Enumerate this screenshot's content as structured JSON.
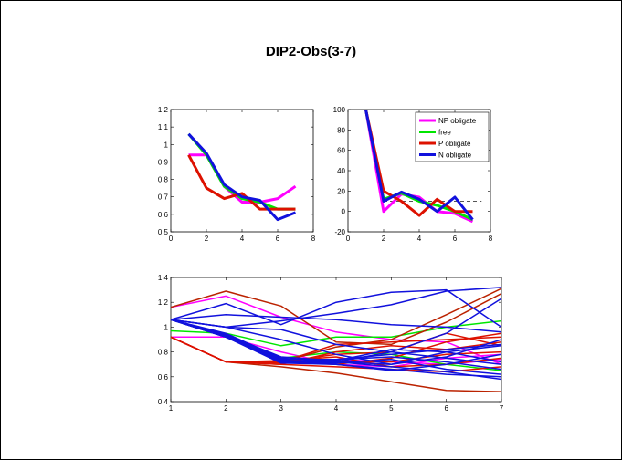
{
  "figure_title": "DIP2-Obs(3-7)",
  "colors": {
    "np_obligate": "#ff00ff",
    "free": "#00e600",
    "p_obligate": "#dd1100",
    "n_obligate": "#1111dd",
    "dark_red": "#bb2200",
    "dashed": "#555555"
  },
  "chart_data": [
    {
      "type": "line",
      "title": "",
      "xlabel": "",
      "ylabel": "",
      "xlim": [
        0,
        8
      ],
      "ylim": [
        0.5,
        1.2
      ],
      "xticks": [
        "0",
        "2",
        "4",
        "6",
        "8"
      ],
      "yticks": [
        "0.5",
        "0.6",
        "0.7",
        "0.8",
        "0.9",
        "1",
        "1.1",
        "1.2"
      ],
      "grid": false,
      "series": [
        {
          "color_key": "np_obligate",
          "x": [
            1,
            2,
            3,
            4,
            5,
            6,
            7
          ],
          "y": [
            0.94,
            0.94,
            0.76,
            0.67,
            0.67,
            0.69,
            0.76
          ]
        },
        {
          "color_key": "free",
          "x": [
            1,
            2,
            3,
            4,
            5,
            6,
            7
          ],
          "y": [
            1.06,
            0.94,
            0.76,
            0.69,
            0.67,
            0.63,
            0.63
          ]
        },
        {
          "color_key": "p_obligate",
          "x": [
            1,
            2,
            3,
            4,
            5,
            6,
            7
          ],
          "y": [
            0.94,
            0.75,
            0.69,
            0.72,
            0.63,
            0.63,
            0.63
          ]
        },
        {
          "color_key": "n_obligate",
          "x": [
            1,
            2,
            3,
            4,
            5,
            6,
            7
          ],
          "y": [
            1.06,
            0.95,
            0.77,
            0.7,
            0.68,
            0.57,
            0.61
          ]
        }
      ]
    },
    {
      "type": "line",
      "title": "",
      "xlabel": "",
      "ylabel": "",
      "xlim": [
        0,
        8
      ],
      "ylim": [
        -20,
        100
      ],
      "xticks": [
        "0",
        "2",
        "4",
        "6",
        "8"
      ],
      "yticks": [
        "-20",
        "0",
        "20",
        "40",
        "60",
        "80",
        "100"
      ],
      "grid": false,
      "reference_line": {
        "y": 10,
        "x": [
          2,
          7.5
        ],
        "style": "dashed"
      },
      "legend": {
        "position": "top-right",
        "entries": [
          {
            "label": "NP obligate",
            "color_key": "np_obligate"
          },
          {
            "label": "free",
            "color_key": "free"
          },
          {
            "label": "P obligate",
            "color_key": "p_obligate"
          },
          {
            "label": "N obligate",
            "color_key": "n_obligate"
          }
        ]
      },
      "series": [
        {
          "color_key": "np_obligate",
          "x": [
            1,
            2,
            3,
            4,
            5,
            6,
            7
          ],
          "y": [
            100,
            0,
            17,
            14,
            0,
            -2,
            -10
          ]
        },
        {
          "color_key": "free",
          "x": [
            1,
            2,
            3,
            4,
            5,
            6,
            7
          ],
          "y": [
            100,
            12,
            18,
            10,
            6,
            0,
            -8
          ]
        },
        {
          "color_key": "p_obligate",
          "x": [
            1,
            2,
            3,
            4,
            5,
            6,
            7
          ],
          "y": [
            100,
            20,
            10,
            -4,
            12,
            0,
            0
          ]
        },
        {
          "color_key": "n_obligate",
          "x": [
            1,
            2,
            3,
            4,
            5,
            6,
            7
          ],
          "y": [
            100,
            10,
            19,
            12,
            0,
            14,
            -8
          ]
        }
      ]
    },
    {
      "type": "line",
      "title": "",
      "xlabel": "",
      "ylabel": "",
      "xlim": [
        1,
        7
      ],
      "ylim": [
        0.4,
        1.4
      ],
      "xticks": [
        "1",
        "2",
        "3",
        "4",
        "5",
        "6",
        "7"
      ],
      "yticks": [
        "0.4",
        "0.6",
        "0.8",
        "1",
        "1.2",
        "1.4"
      ],
      "grid": false,
      "series": [
        {
          "color_key": "np_obligate",
          "x": [
            1,
            2,
            3,
            4,
            5,
            6,
            7
          ],
          "y": [
            1.16,
            1.25,
            1.08,
            0.96,
            0.9,
            0.88,
            0.7
          ]
        },
        {
          "color_key": "np_obligate",
          "x": [
            1,
            2,
            3,
            4,
            5,
            6,
            7
          ],
          "y": [
            0.92,
            0.92,
            0.8,
            0.7,
            0.68,
            0.75,
            0.78
          ]
        },
        {
          "color_key": "np_obligate",
          "x": [
            1,
            2,
            3,
            4,
            5,
            6,
            7
          ],
          "y": [
            0.92,
            0.72,
            0.72,
            0.74,
            0.72,
            0.7,
            0.74
          ]
        },
        {
          "color_key": "free",
          "x": [
            1,
            2,
            3,
            4,
            5,
            6,
            7
          ],
          "y": [
            0.97,
            0.95,
            0.85,
            0.92,
            0.92,
            1.0,
            1.05
          ]
        },
        {
          "color_key": "free",
          "x": [
            1,
            2,
            3,
            4,
            5,
            6,
            7
          ],
          "y": [
            1.06,
            0.92,
            0.75,
            0.8,
            0.78,
            0.7,
            0.65
          ]
        },
        {
          "color_key": "dark_red",
          "x": [
            1,
            2,
            3,
            4,
            5,
            6,
            7
          ],
          "y": [
            1.16,
            1.29,
            1.17,
            0.88,
            0.86,
            1.04,
            1.27
          ]
        },
        {
          "color_key": "dark_red",
          "x": [
            1,
            2,
            3,
            4,
            5,
            6,
            7
          ],
          "y": [
            0.92,
            0.72,
            0.68,
            0.63,
            0.56,
            0.49,
            0.48
          ]
        },
        {
          "color_key": "dark_red",
          "x": [
            1,
            2,
            3,
            4,
            5,
            6,
            7
          ],
          "y": [
            0.92,
            0.72,
            0.72,
            0.84,
            0.9,
            1.1,
            1.31
          ]
        },
        {
          "color_key": "p_obligate",
          "x": [
            1,
            2,
            3,
            4,
            5,
            6,
            7
          ],
          "y": [
            0.92,
            0.72,
            0.72,
            0.86,
            0.88,
            0.9,
            0.92
          ]
        },
        {
          "color_key": "p_obligate",
          "x": [
            1,
            2,
            3,
            4,
            5,
            6,
            7
          ],
          "y": [
            0.92,
            0.72,
            0.7,
            0.8,
            0.85,
            0.82,
            0.88
          ]
        },
        {
          "color_key": "p_obligate",
          "x": [
            1,
            2,
            3,
            4,
            5,
            6,
            7
          ],
          "y": [
            0.92,
            0.72,
            0.72,
            0.78,
            0.8,
            0.95,
            0.85
          ]
        },
        {
          "color_key": "p_obligate",
          "x": [
            1,
            2,
            3,
            4,
            5,
            6,
            7
          ],
          "y": [
            0.92,
            0.72,
            0.7,
            0.68,
            0.66,
            0.64,
            0.68
          ]
        },
        {
          "color_key": "p_obligate",
          "x": [
            1,
            2,
            3,
            4,
            5,
            6,
            7
          ],
          "y": [
            0.92,
            0.72,
            0.71,
            0.72,
            0.72,
            0.78,
            0.8
          ]
        },
        {
          "color_key": "p_obligate",
          "x": [
            1,
            2,
            3,
            4,
            5,
            6,
            7
          ],
          "y": [
            0.92,
            0.72,
            0.73,
            0.76,
            0.68,
            0.7,
            0.75
          ]
        },
        {
          "color_key": "p_obligate",
          "x": [
            1,
            2,
            3,
            4,
            5,
            6,
            7
          ],
          "y": [
            0.92,
            0.72,
            0.72,
            0.7,
            0.75,
            0.88,
            0.95
          ]
        },
        {
          "color_key": "n_obligate",
          "x": [
            1,
            2,
            3,
            4,
            5,
            6,
            7
          ],
          "y": [
            1.06,
            1.19,
            1.02,
            1.2,
            1.28,
            1.3,
            1.0
          ]
        },
        {
          "color_key": "n_obligate",
          "x": [
            1,
            2,
            3,
            4,
            5,
            6,
            7
          ],
          "y": [
            1.06,
            1.0,
            1.05,
            1.11,
            1.18,
            1.29,
            1.32
          ]
        },
        {
          "color_key": "n_obligate",
          "x": [
            1,
            2,
            3,
            4,
            5,
            6,
            7
          ],
          "y": [
            1.06,
            1.1,
            1.08,
            1.06,
            1.02,
            1.0,
            0.96
          ]
        },
        {
          "color_key": "n_obligate",
          "x": [
            1,
            2,
            3,
            4,
            5,
            6,
            7
          ],
          "y": [
            1.06,
            0.95,
            0.75,
            0.72,
            0.8,
            0.95,
            1.23
          ]
        },
        {
          "color_key": "n_obligate",
          "x": [
            1,
            2,
            3,
            4,
            5,
            6,
            7
          ],
          "y": [
            1.06,
            0.92,
            0.72,
            0.74,
            0.78,
            0.82,
            0.86
          ]
        },
        {
          "color_key": "n_obligate",
          "x": [
            1,
            2,
            3,
            4,
            5,
            6,
            7
          ],
          "y": [
            1.06,
            1.0,
            0.98,
            0.86,
            0.8,
            0.75,
            0.7
          ]
        },
        {
          "color_key": "n_obligate",
          "x": [
            1,
            2,
            3,
            4,
            5,
            6,
            7
          ],
          "y": [
            1.06,
            0.93,
            0.72,
            0.72,
            0.68,
            0.64,
            0.58
          ]
        },
        {
          "color_key": "n_obligate",
          "x": [
            1,
            2,
            3,
            4,
            5,
            6,
            7
          ],
          "y": [
            1.06,
            0.93,
            0.73,
            0.7,
            0.65,
            0.7,
            0.78
          ]
        },
        {
          "color_key": "n_obligate",
          "x": [
            1,
            2,
            3,
            4,
            5,
            6,
            7
          ],
          "y": [
            1.06,
            0.94,
            0.74,
            0.74,
            0.76,
            0.72,
            0.66
          ]
        },
        {
          "color_key": "n_obligate",
          "x": [
            1,
            2,
            3,
            4,
            5,
            6,
            7
          ],
          "y": [
            1.06,
            0.92,
            0.71,
            0.7,
            0.66,
            0.62,
            0.6
          ]
        },
        {
          "color_key": "n_obligate",
          "x": [
            1,
            2,
            3,
            4,
            5,
            6,
            7
          ],
          "y": [
            1.06,
            0.94,
            0.76,
            0.73,
            0.82,
            0.8,
            0.72
          ]
        },
        {
          "color_key": "n_obligate",
          "x": [
            1,
            2,
            3,
            4,
            5,
            6,
            7
          ],
          "y": [
            1.06,
            1.0,
            0.9,
            0.78,
            0.7,
            0.8,
            0.85
          ]
        },
        {
          "color_key": "n_obligate",
          "x": [
            1,
            2,
            3,
            4,
            5,
            6,
            7
          ],
          "y": [
            1.06,
            0.93,
            0.72,
            0.71,
            0.74,
            0.66,
            0.62
          ]
        },
        {
          "color_key": "n_obligate",
          "x": [
            1,
            2,
            3,
            4,
            5,
            6,
            7
          ],
          "y": [
            1.06,
            0.92,
            0.73,
            0.72,
            0.7,
            0.76,
            0.9
          ]
        }
      ]
    }
  ]
}
